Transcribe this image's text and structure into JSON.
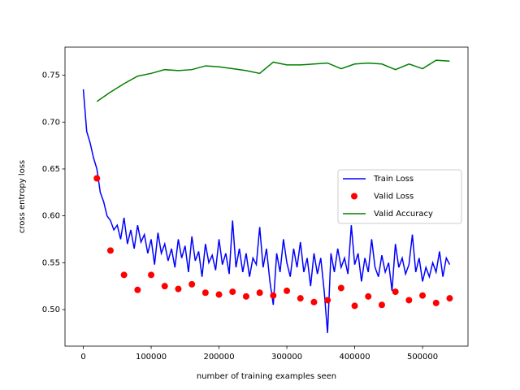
{
  "chart_data": {
    "type": "line",
    "xlabel": "number of training examples seen",
    "ylabel": "cross entropy loss",
    "xlim": [
      -27000,
      567000
    ],
    "ylim": [
      0.461,
      0.78
    ],
    "xticks": [
      0,
      100000,
      200000,
      300000,
      400000,
      500000
    ],
    "yticks": [
      {
        "value": 0.5,
        "label": "0.50"
      },
      0.55,
      {
        "value": 0.6,
        "label": "0.60"
      },
      0.65,
      {
        "value": 0.7,
        "label": "0.70"
      },
      0.75
    ],
    "legend": "center right",
    "series": [
      {
        "name": "Train Loss",
        "color": "#0000ff",
        "kind": "line",
        "x": [
          0,
          5000,
          10000,
          15000,
          20000,
          25000,
          30000,
          35000,
          40000,
          45000,
          50000,
          55000,
          60000,
          65000,
          70000,
          75000,
          80000,
          85000,
          90000,
          95000,
          100000,
          105000,
          110000,
          115000,
          120000,
          125000,
          130000,
          135000,
          140000,
          145000,
          150000,
          155000,
          160000,
          165000,
          170000,
          175000,
          180000,
          185000,
          190000,
          195000,
          200000,
          205000,
          210000,
          215000,
          220000,
          225000,
          230000,
          235000,
          240000,
          245000,
          250000,
          255000,
          260000,
          265000,
          270000,
          275000,
          280000,
          285000,
          290000,
          295000,
          300000,
          305000,
          310000,
          315000,
          320000,
          325000,
          330000,
          335000,
          340000,
          345000,
          350000,
          355000,
          360000,
          365000,
          370000,
          375000,
          380000,
          385000,
          390000,
          395000,
          400000,
          405000,
          410000,
          415000,
          420000,
          425000,
          430000,
          435000,
          440000,
          445000,
          450000,
          455000,
          460000,
          465000,
          470000,
          475000,
          480000,
          485000,
          490000,
          495000,
          500000,
          505000,
          510000,
          515000,
          520000,
          525000,
          530000,
          535000,
          540000
        ],
        "values": [
          0.735,
          0.69,
          0.678,
          0.662,
          0.65,
          0.625,
          0.615,
          0.6,
          0.595,
          0.585,
          0.59,
          0.575,
          0.598,
          0.57,
          0.585,
          0.565,
          0.59,
          0.572,
          0.58,
          0.56,
          0.575,
          0.548,
          0.582,
          0.56,
          0.57,
          0.552,
          0.565,
          0.545,
          0.575,
          0.555,
          0.568,
          0.54,
          0.578,
          0.552,
          0.562,
          0.535,
          0.57,
          0.55,
          0.558,
          0.542,
          0.575,
          0.548,
          0.56,
          0.538,
          0.595,
          0.545,
          0.565,
          0.54,
          0.56,
          0.535,
          0.555,
          0.548,
          0.588,
          0.545,
          0.565,
          0.53,
          0.505,
          0.56,
          0.54,
          0.575,
          0.55,
          0.535,
          0.565,
          0.545,
          0.572,
          0.54,
          0.555,
          0.525,
          0.56,
          0.538,
          0.555,
          0.52,
          0.475,
          0.56,
          0.54,
          0.565,
          0.545,
          0.555,
          0.538,
          0.59,
          0.548,
          0.56,
          0.53,
          0.555,
          0.54,
          0.575,
          0.545,
          0.535,
          0.558,
          0.54,
          0.55,
          0.52,
          0.57,
          0.545,
          0.555,
          0.538,
          0.548,
          0.58,
          0.54,
          0.555,
          0.53,
          0.545,
          0.535,
          0.55,
          0.54,
          0.562,
          0.535,
          0.555,
          0.548
        ]
      },
      {
        "name": "Valid Loss",
        "color": "#ff0000",
        "kind": "scatter",
        "x": [
          20000,
          40000,
          60000,
          80000,
          100000,
          120000,
          140000,
          160000,
          180000,
          200000,
          220000,
          240000,
          260000,
          280000,
          300000,
          320000,
          340000,
          360000,
          380000,
          400000,
          420000,
          440000,
          460000,
          480000,
          500000,
          520000,
          540000
        ],
        "values": [
          0.64,
          0.563,
          0.537,
          0.521,
          0.537,
          0.525,
          0.522,
          0.527,
          0.518,
          0.516,
          0.519,
          0.514,
          0.518,
          0.515,
          0.52,
          0.512,
          0.508,
          0.51,
          0.523,
          0.504,
          0.514,
          0.505,
          0.519,
          0.51,
          0.515,
          0.507,
          0.512
        ]
      },
      {
        "name": "Valid Accuracy",
        "color": "#008000",
        "kind": "line",
        "x": [
          20000,
          40000,
          60000,
          80000,
          100000,
          120000,
          140000,
          160000,
          180000,
          200000,
          220000,
          240000,
          260000,
          280000,
          300000,
          320000,
          340000,
          360000,
          380000,
          400000,
          420000,
          440000,
          460000,
          480000,
          500000,
          520000,
          540000
        ],
        "values": [
          0.722,
          0.732,
          0.741,
          0.749,
          0.752,
          0.756,
          0.755,
          0.756,
          0.76,
          0.759,
          0.757,
          0.755,
          0.752,
          0.764,
          0.761,
          0.761,
          0.762,
          0.763,
          0.757,
          0.762,
          0.763,
          0.762,
          0.756,
          0.762,
          0.757,
          0.766,
          0.765
        ]
      }
    ]
  }
}
